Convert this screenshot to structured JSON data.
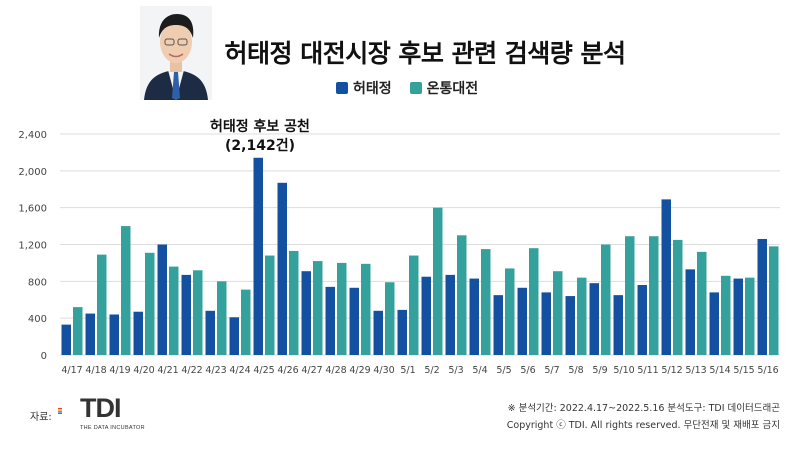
{
  "header": {
    "title": "허태정 대전시장 후보 관련 검색량 분석"
  },
  "colors": {
    "series_1": "#1450a0",
    "series_2": "#35a19c",
    "grid": "#dddddd"
  },
  "annotation": {
    "line1": "허태정 후보 공천",
    "line2": "(2,142건)"
  },
  "chart_data": {
    "type": "bar",
    "title": "허태정 대전시장 후보 관련 검색량 분석",
    "categories": [
      "4/17",
      "4/18",
      "4/19",
      "4/20",
      "4/21",
      "4/22",
      "4/23",
      "4/24",
      "4/25",
      "4/26",
      "4/27",
      "4/28",
      "4/29",
      "4/30",
      "5/1",
      "5/2",
      "5/3",
      "5/4",
      "5/5",
      "5/6",
      "5/7",
      "5/8",
      "5/9",
      "5/10",
      "5/11",
      "5/12",
      "5/13",
      "5/14",
      "5/15",
      "5/16"
    ],
    "series": [
      {
        "name": "허태정",
        "values": [
          330,
          450,
          440,
          470,
          1200,
          870,
          480,
          410,
          2142,
          1870,
          910,
          740,
          730,
          480,
          490,
          850,
          870,
          830,
          650,
          730,
          680,
          640,
          780,
          650,
          760,
          1690,
          930,
          680,
          830,
          1260
        ]
      },
      {
        "name": "온통대전",
        "values": [
          520,
          1090,
          1400,
          1110,
          960,
          920,
          800,
          710,
          1080,
          1130,
          1020,
          1000,
          990,
          790,
          1080,
          1600,
          1300,
          1150,
          940,
          1160,
          910,
          840,
          1200,
          1290,
          1290,
          1250,
          1120,
          860,
          840,
          1180
        ]
      }
    ],
    "y_ticks": [
      "0",
      "400",
      "800",
      "1,200",
      "1,600",
      "2,000",
      "2,400"
    ],
    "ylim": [
      0,
      2400
    ],
    "grid": true,
    "legend_position": "top-center"
  },
  "footer": {
    "source_label": "자료:",
    "logo_text": "TDI",
    "logo_subtext": "THE DATA INCUBATOR",
    "period_note": "※ 분석기간: 2022.4.17~2022.5.16  분석도구: TDI 데이터드래곤",
    "copyright": "Copyright ⓒ TDI. All rights reserved. 무단전재 및 재배포 금지"
  }
}
